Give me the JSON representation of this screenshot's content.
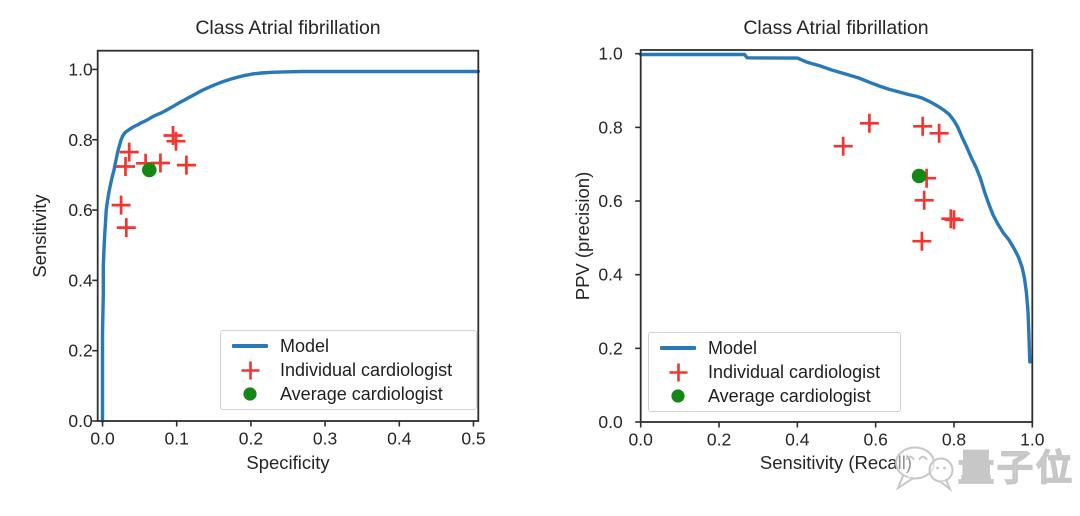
{
  "watermark": {
    "text": "量子位",
    "logo": "qbitai-chat-bubbles-icon",
    "color": "#c7c7c7"
  },
  "chart_data": [
    {
      "type": "line",
      "title": "Class Atrial fibrillation",
      "xlabel": "Specificity",
      "ylabel": "Sensitivity",
      "xlim": [
        -0.0065,
        0.5065
      ],
      "ylim": [
        0,
        1.0533
      ],
      "grid": false,
      "legend_position": "lower right",
      "xticks": [
        0.0,
        0.1,
        0.2,
        0.3,
        0.4,
        0.5
      ],
      "xtick_labels": [
        "0.0",
        "0.1",
        "0.2",
        "0.3",
        "0.4",
        "0.5"
      ],
      "yticks": [
        0.0,
        0.2,
        0.4,
        0.6,
        0.8,
        1.0
      ],
      "ytick_labels": [
        "0.0",
        "0.2",
        "0.4",
        "0.6",
        "0.8",
        "1.0"
      ],
      "series": [
        {
          "name": "Model",
          "kind": "line",
          "color": "#2979b8",
          "points": [
            [
              0.0,
              0.0
            ],
            [
              0.0,
              0.25
            ],
            [
              0.001,
              0.36
            ],
            [
              0.001,
              0.44
            ],
            [
              0.002,
              0.49
            ],
            [
              0.003,
              0.53
            ],
            [
              0.004,
              0.565
            ],
            [
              0.005,
              0.6
            ],
            [
              0.007,
              0.63
            ],
            [
              0.009,
              0.655
            ],
            [
              0.011,
              0.675
            ],
            [
              0.013,
              0.695
            ],
            [
              0.015,
              0.71
            ],
            [
              0.017,
              0.73
            ],
            [
              0.019,
              0.75
            ],
            [
              0.021,
              0.77
            ],
            [
              0.023,
              0.785
            ],
            [
              0.025,
              0.8
            ],
            [
              0.027,
              0.81
            ],
            [
              0.03,
              0.82
            ],
            [
              0.034,
              0.826
            ],
            [
              0.038,
              0.832
            ],
            [
              0.043,
              0.838
            ],
            [
              0.048,
              0.843
            ],
            [
              0.053,
              0.849
            ],
            [
              0.058,
              0.854
            ],
            [
              0.063,
              0.86
            ],
            [
              0.068,
              0.866
            ],
            [
              0.073,
              0.871
            ],
            [
              0.079,
              0.876
            ],
            [
              0.085,
              0.883
            ],
            [
              0.091,
              0.89
            ],
            [
              0.097,
              0.897
            ],
            [
              0.104,
              0.906
            ],
            [
              0.111,
              0.914
            ],
            [
              0.118,
              0.922
            ],
            [
              0.126,
              0.931
            ],
            [
              0.134,
              0.94
            ],
            [
              0.143,
              0.949
            ],
            [
              0.152,
              0.957
            ],
            [
              0.162,
              0.965
            ],
            [
              0.172,
              0.972
            ],
            [
              0.182,
              0.978
            ],
            [
              0.192,
              0.983
            ],
            [
              0.202,
              0.987
            ],
            [
              0.214,
              0.99
            ],
            [
              0.228,
              0.992
            ],
            [
              0.245,
              0.993
            ],
            [
              0.27,
              0.994
            ],
            [
              0.32,
              0.994
            ],
            [
              0.38,
              0.994
            ],
            [
              0.44,
              0.994
            ],
            [
              0.5065,
              0.994
            ]
          ]
        },
        {
          "name": "Individual cardiologist",
          "kind": "scatter",
          "marker": "plus",
          "color": "#f43430",
          "points": [
            [
              0.036,
              0.765
            ],
            [
              0.031,
              0.724
            ],
            [
              0.095,
              0.812
            ],
            [
              0.099,
              0.796
            ],
            [
              0.058,
              0.733
            ],
            [
              0.078,
              0.734
            ],
            [
              0.113,
              0.728
            ],
            [
              0.025,
              0.614
            ],
            [
              0.032,
              0.55
            ]
          ]
        },
        {
          "name": "Average cardiologist",
          "kind": "scatter",
          "marker": "circle",
          "color": "#148714",
          "points": [
            [
              0.063,
              0.714
            ]
          ]
        }
      ]
    },
    {
      "type": "line",
      "title": "Class Atrial fibrillation",
      "xlabel": "Sensitivity (Recall)",
      "ylabel": "PPV (precision)",
      "xlim": [
        0,
        1.0
      ],
      "ylim": [
        0,
        1.0101
      ],
      "grid": false,
      "legend_position": "lower left",
      "xticks": [
        0.0,
        0.2,
        0.4,
        0.6,
        0.8,
        1.0
      ],
      "xtick_labels": [
        "0.0",
        "0.2",
        "0.4",
        "0.6",
        "0.8",
        "1.0"
      ],
      "yticks": [
        0.0,
        0.2,
        0.4,
        0.6,
        0.8,
        1.0
      ],
      "ytick_labels": [
        "0.0",
        "0.2",
        "0.4",
        "0.6",
        "0.8",
        "1.0"
      ],
      "series": [
        {
          "name": "Model",
          "kind": "line",
          "color": "#2979b8",
          "points": [
            [
              0.0,
              0.998
            ],
            [
              0.12,
              0.998
            ],
            [
              0.265,
              0.998
            ],
            [
              0.272,
              0.989
            ],
            [
              0.4,
              0.988
            ],
            [
              0.425,
              0.977
            ],
            [
              0.458,
              0.967
            ],
            [
              0.49,
              0.955
            ],
            [
              0.525,
              0.944
            ],
            [
              0.557,
              0.934
            ],
            [
              0.585,
              0.922
            ],
            [
              0.61,
              0.912
            ],
            [
              0.635,
              0.903
            ],
            [
              0.66,
              0.896
            ],
            [
              0.685,
              0.889
            ],
            [
              0.705,
              0.884
            ],
            [
              0.72,
              0.879
            ],
            [
              0.74,
              0.869
            ],
            [
              0.758,
              0.858
            ],
            [
              0.774,
              0.847
            ],
            [
              0.788,
              0.835
            ],
            [
              0.8,
              0.818
            ],
            [
              0.81,
              0.8
            ],
            [
              0.82,
              0.775
            ],
            [
              0.832,
              0.748
            ],
            [
              0.845,
              0.716
            ],
            [
              0.857,
              0.69
            ],
            [
              0.868,
              0.66
            ],
            [
              0.878,
              0.625
            ],
            [
              0.888,
              0.595
            ],
            [
              0.9,
              0.562
            ],
            [
              0.912,
              0.538
            ],
            [
              0.925,
              0.515
            ],
            [
              0.94,
              0.495
            ],
            [
              0.953,
              0.472
            ],
            [
              0.965,
              0.447
            ],
            [
              0.974,
              0.42
            ],
            [
              0.98,
              0.39
            ],
            [
              0.985,
              0.352
            ],
            [
              0.989,
              0.3
            ],
            [
              0.991,
              0.245
            ],
            [
              0.9925,
              0.195
            ],
            [
              0.9935,
              0.163
            ]
          ]
        },
        {
          "name": "Individual cardiologist",
          "kind": "scatter",
          "marker": "plus",
          "color": "#f43430",
          "points": [
            [
              0.517,
              0.749
            ],
            [
              0.584,
              0.811
            ],
            [
              0.72,
              0.803
            ],
            [
              0.762,
              0.784
            ],
            [
              0.73,
              0.662
            ],
            [
              0.724,
              0.602
            ],
            [
              0.792,
              0.552
            ],
            [
              0.8,
              0.549
            ],
            [
              0.718,
              0.491
            ]
          ]
        },
        {
          "name": "Average cardiologist",
          "kind": "scatter",
          "marker": "circle",
          "color": "#148714",
          "points": [
            [
              0.711,
              0.668
            ]
          ]
        }
      ]
    }
  ]
}
